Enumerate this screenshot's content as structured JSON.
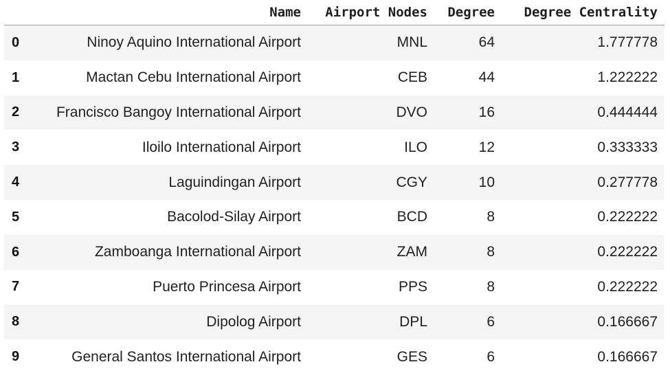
{
  "table": {
    "columns": {
      "index": "",
      "name": "Name",
      "airport_nodes": "Airport Nodes",
      "degree": "Degree",
      "degree_centrality": "Degree Centrality"
    },
    "rows": [
      {
        "index": "0",
        "name": "Ninoy Aquino International Airport",
        "code": "MNL",
        "degree": "64",
        "centrality": "1.777778"
      },
      {
        "index": "1",
        "name": "Mactan Cebu International Airport",
        "code": "CEB",
        "degree": "44",
        "centrality": "1.222222"
      },
      {
        "index": "2",
        "name": "Francisco Bangoy International Airport",
        "code": "DVO",
        "degree": "16",
        "centrality": "0.444444"
      },
      {
        "index": "3",
        "name": "Iloilo International Airport",
        "code": "ILO",
        "degree": "12",
        "centrality": "0.333333"
      },
      {
        "index": "4",
        "name": "Laguindingan Airport",
        "code": "CGY",
        "degree": "10",
        "centrality": "0.277778"
      },
      {
        "index": "5",
        "name": "Bacolod-Silay Airport",
        "code": "BCD",
        "degree": "8",
        "centrality": "0.222222"
      },
      {
        "index": "6",
        "name": "Zamboanga International Airport",
        "code": "ZAM",
        "degree": "8",
        "centrality": "0.222222"
      },
      {
        "index": "7",
        "name": "Puerto Princesa Airport",
        "code": "PPS",
        "degree": "8",
        "centrality": "0.222222"
      },
      {
        "index": "8",
        "name": "Dipolog Airport",
        "code": "DPL",
        "degree": "6",
        "centrality": "0.166667"
      },
      {
        "index": "9",
        "name": "General Santos International Airport",
        "code": "GES",
        "degree": "6",
        "centrality": "0.166667"
      }
    ]
  }
}
